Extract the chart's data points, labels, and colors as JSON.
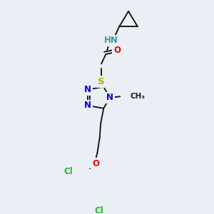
{
  "bg_color": "#eaeff5",
  "bond_color": "#1a1a1a",
  "bond_width": 1.4,
  "atom_colors": {
    "N": "#0000ee",
    "O": "#ee0000",
    "S": "#bbaa00",
    "Cl": "#22bb22",
    "HN": "#449999",
    "C": "#1a1a1a"
  },
  "font_size": 8.5
}
